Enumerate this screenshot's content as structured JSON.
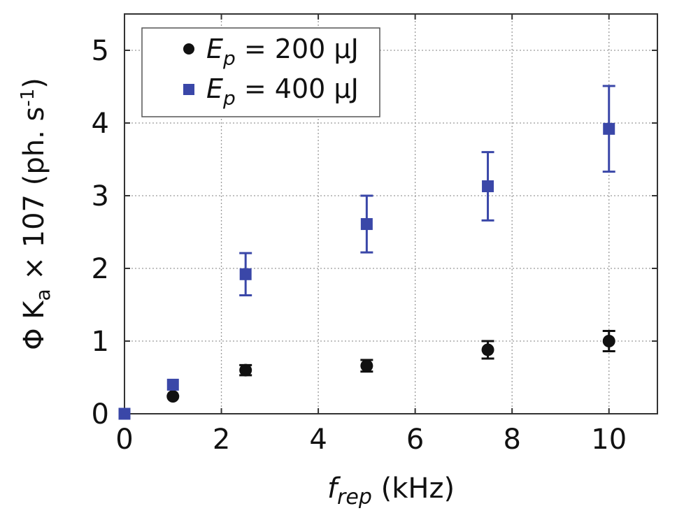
{
  "chart_data": {
    "type": "scatter",
    "title": "",
    "xlabel": {
      "symbol": "f",
      "subscript": "rep",
      "unit": "(kHz)"
    },
    "ylabel": {
      "prefix": "Φ K",
      "subscript": "a",
      "middle": " × 107 (ph. s",
      "superscript": "-1",
      "suffix": ")"
    },
    "xlim": [
      0,
      11
    ],
    "ylim": [
      0,
      5.5
    ],
    "xticks": [
      0,
      2,
      4,
      6,
      8,
      10
    ],
    "yticks": [
      0,
      1,
      2,
      3,
      4,
      5
    ],
    "xtick_labels": [
      "0",
      "2",
      "4",
      "6",
      "8",
      "10"
    ],
    "ytick_labels": [
      "0",
      "1",
      "2",
      "3",
      "4",
      "5"
    ],
    "grid": true,
    "legend_position": "top-left",
    "series": [
      {
        "name": "E_p = 200 µJ",
        "label_symbol": "E",
        "label_subscript": "p",
        "label_value": " = 200 µJ",
        "marker": "circle",
        "color": "#111111",
        "x": [
          1,
          2.5,
          5,
          7.5,
          10
        ],
        "y": [
          0.24,
          0.6,
          0.66,
          0.88,
          1.0
        ],
        "yerr": [
          0,
          0.07,
          0.08,
          0.12,
          0.14
        ]
      },
      {
        "name": "E_p = 400 µJ",
        "label_symbol": "E",
        "label_subscript": "p",
        "label_value": " = 400 µJ",
        "marker": "square",
        "color": "#3a47a8",
        "x": [
          0,
          1,
          2.5,
          5,
          7.5,
          10
        ],
        "y": [
          0.0,
          0.4,
          1.92,
          2.61,
          3.13,
          3.92
        ],
        "yerr": [
          0,
          0,
          0.29,
          0.39,
          0.47,
          0.59
        ]
      }
    ]
  }
}
